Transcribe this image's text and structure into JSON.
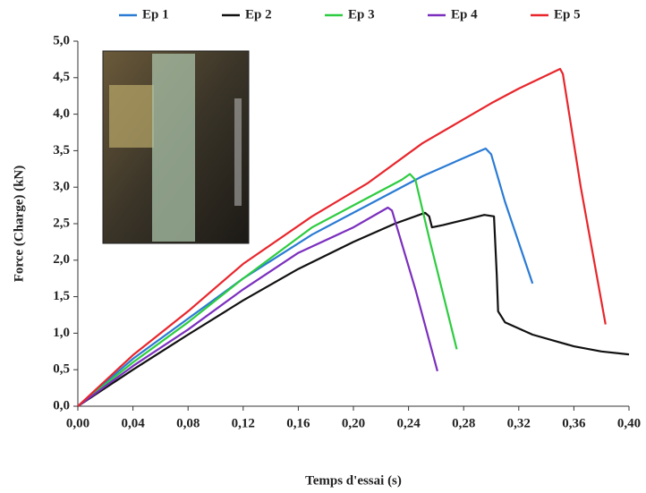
{
  "chart_data": {
    "type": "line",
    "xlabel": "Temps d'essai (s)",
    "ylabel": "Force (Charge) (kN)",
    "xlim": [
      0,
      0.4
    ],
    "ylim": [
      0,
      5
    ],
    "xticks": [
      {
        "value": 0,
        "label": "0,00"
      },
      {
        "value": 0.04,
        "label": "0,04"
      },
      {
        "value": 0.08,
        "label": "0,08"
      },
      {
        "value": 0.12,
        "label": "0,12"
      },
      {
        "value": 0.16,
        "label": "0,16"
      },
      {
        "value": 0.2,
        "label": "0,20"
      },
      {
        "value": 0.24,
        "label": "0,24"
      },
      {
        "value": 0.28,
        "label": "0,28"
      },
      {
        "value": 0.32,
        "label": "0,32"
      },
      {
        "value": 0.36,
        "label": "0,36"
      },
      {
        "value": 0.4,
        "label": "0,40"
      }
    ],
    "yticks": [
      {
        "value": 0,
        "label": "0,0"
      },
      {
        "value": 0.5,
        "label": "0,5"
      },
      {
        "value": 1,
        "label": "1,0"
      },
      {
        "value": 1.5,
        "label": "1,5"
      },
      {
        "value": 2,
        "label": "2,0"
      },
      {
        "value": 2.5,
        "label": "2,5"
      },
      {
        "value": 3,
        "label": "3,0"
      },
      {
        "value": 3.5,
        "label": "3,5"
      },
      {
        "value": 4,
        "label": "4,0"
      },
      {
        "value": 4.5,
        "label": "4,5"
      },
      {
        "value": 5,
        "label": "5,0"
      }
    ],
    "legend": "top",
    "series": [
      {
        "name": "Ep 1",
        "color": "#2a7bd4",
        "x": [
          0,
          0.04,
          0.08,
          0.12,
          0.17,
          0.21,
          0.25,
          0.28,
          0.296,
          0.3,
          0.31,
          0.33
        ],
        "values": [
          0,
          0.65,
          1.2,
          1.75,
          2.35,
          2.75,
          3.15,
          3.4,
          3.53,
          3.45,
          2.8,
          1.68
        ]
      },
      {
        "name": "Ep 2",
        "color": "#111111",
        "x": [
          0,
          0.04,
          0.08,
          0.12,
          0.16,
          0.2,
          0.23,
          0.252,
          0.255,
          0.257,
          0.265,
          0.28,
          0.295,
          0.302,
          0.304,
          0.305,
          0.31,
          0.33,
          0.36,
          0.38,
          0.4
        ],
        "values": [
          0,
          0.5,
          0.98,
          1.45,
          1.88,
          2.25,
          2.5,
          2.65,
          2.6,
          2.45,
          2.48,
          2.55,
          2.62,
          2.6,
          1.8,
          1.3,
          1.15,
          0.98,
          0.82,
          0.75,
          0.71
        ]
      },
      {
        "name": "Ep 3",
        "color": "#2ecc40",
        "x": [
          0,
          0.04,
          0.08,
          0.12,
          0.17,
          0.21,
          0.235,
          0.241,
          0.245,
          0.255,
          0.275
        ],
        "values": [
          0,
          0.6,
          1.15,
          1.75,
          2.45,
          2.85,
          3.1,
          3.18,
          3.1,
          2.3,
          0.78
        ]
      },
      {
        "name": "Ep 4",
        "color": "#7b2fbe",
        "x": [
          0,
          0.04,
          0.08,
          0.12,
          0.16,
          0.2,
          0.225,
          0.228,
          0.245,
          0.261
        ],
        "values": [
          0,
          0.55,
          1.05,
          1.6,
          2.1,
          2.45,
          2.72,
          2.68,
          1.6,
          0.48
        ]
      },
      {
        "name": "Ep 5",
        "color": "#e8262c",
        "x": [
          0,
          0.04,
          0.08,
          0.12,
          0.17,
          0.21,
          0.25,
          0.3,
          0.32,
          0.35,
          0.352,
          0.365,
          0.383
        ],
        "values": [
          0,
          0.7,
          1.3,
          1.95,
          2.6,
          3.05,
          3.6,
          4.15,
          4.35,
          4.62,
          4.55,
          3.0,
          1.12
        ]
      }
    ]
  }
}
